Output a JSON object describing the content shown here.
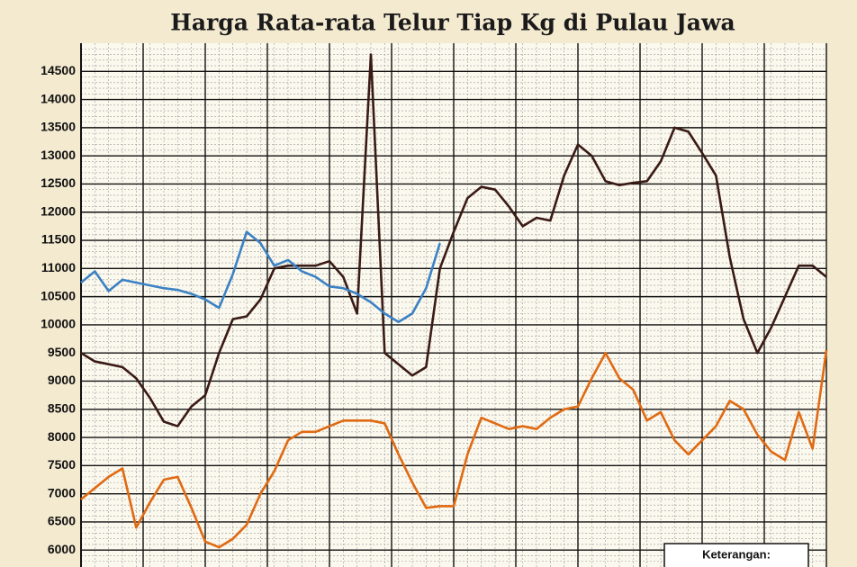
{
  "chart_data": {
    "type": "line",
    "title": "Harga Rata-rata Telur Tiap Kg di Pulau Jawa",
    "x": [
      0,
      1,
      2,
      3,
      4,
      5,
      6,
      7,
      8,
      9,
      10,
      11,
      12,
      13,
      14,
      15,
      16,
      17,
      18,
      19,
      20,
      21,
      22,
      23,
      24,
      25,
      26,
      27,
      28,
      29,
      30,
      31,
      32,
      33,
      34,
      35,
      36,
      37,
      38,
      39,
      40,
      41,
      42,
      43,
      44,
      45,
      46,
      47,
      48,
      49,
      50,
      51,
      52,
      53,
      54
    ],
    "xlim": [
      0,
      54
    ],
    "ylim": [
      5700,
      15000
    ],
    "yticks": [
      6000,
      6500,
      7000,
      7500,
      8000,
      8500,
      9000,
      9500,
      10000,
      10500,
      11000,
      11500,
      12000,
      12500,
      13000,
      13500,
      14000,
      14500
    ],
    "grid": true,
    "legend_title": "Keterangan:",
    "series": [
      {
        "color": "#3a1a14",
        "values": [
          9500,
          9350,
          9300,
          9250,
          9050,
          8700,
          8280,
          8200,
          8550,
          8750,
          9500,
          10100,
          10150,
          10450,
          11000,
          11050,
          11050,
          11050,
          11130,
          10850,
          10200,
          14800,
          9500,
          9300,
          9100,
          9250,
          11000,
          11650,
          12250,
          12450,
          12400,
          12100,
          11750,
          11900,
          11850,
          12650,
          13200,
          13000,
          12550,
          12480,
          12520,
          12550,
          12900,
          13500,
          13430,
          13050,
          12650,
          11200,
          10100,
          9500,
          9950,
          10500,
          11050,
          11050,
          10850
        ]
      },
      {
        "color": "#3b82c4",
        "values": [
          10750,
          10950,
          10600,
          10800,
          10750,
          10700,
          10650,
          10620,
          10550,
          10450,
          10300,
          10900,
          11650,
          11450,
          11050,
          11150,
          10950,
          10850,
          10680,
          10650,
          10550,
          10400,
          10200,
          10050,
          10200,
          10650,
          11450,
          null,
          null,
          null,
          null,
          null,
          null,
          null,
          null,
          null,
          null,
          null,
          null,
          null,
          null,
          null,
          null,
          null,
          null,
          null,
          null,
          null,
          null,
          null,
          null,
          null,
          null,
          null,
          null
        ]
      },
      {
        "color": "#e06a12",
        "values": [
          6900,
          7100,
          7300,
          7450,
          6400,
          6850,
          7250,
          7300,
          6750,
          6150,
          6050,
          6200,
          6450,
          7000,
          7400,
          7950,
          8100,
          8100,
          8200,
          8300,
          8300,
          8300,
          8250,
          7700,
          7200,
          6750,
          6780,
          6780,
          7700,
          8350,
          8250,
          8150,
          8200,
          8150,
          8350,
          8500,
          8550,
          9050,
          9500,
          9050,
          8850,
          8300,
          8450,
          7950,
          7700,
          7950,
          8200,
          8650,
          8500,
          8050,
          7750,
          7600,
          8450,
          7800,
          9550
        ]
      }
    ]
  }
}
